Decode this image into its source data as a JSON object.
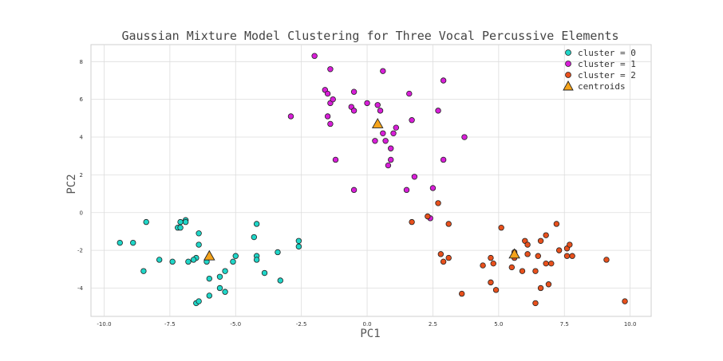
{
  "chart_data": {
    "type": "scatter",
    "title": "Gaussian Mixture Model Clustering for Three Vocal Percussive Elements",
    "xlabel": "PC1",
    "ylabel": "PC2",
    "xlim": [
      -10.5,
      10.8
    ],
    "ylim": [
      -5.5,
      8.9
    ],
    "xticks": [
      -10.0,
      -7.5,
      -5.0,
      -2.5,
      0.0,
      2.5,
      5.0,
      7.5,
      10.0
    ],
    "xtick_labels": [
      "-10.0",
      "-7.5",
      "-5.0",
      "-2.5",
      "0.0",
      "2.5",
      "5.0",
      "7.5",
      "10.0"
    ],
    "yticks": [
      -4,
      -2,
      0,
      2,
      4,
      6,
      8
    ],
    "ytick_labels": [
      "-4",
      "-2",
      "0",
      "2",
      "4",
      "6",
      "8"
    ],
    "grid": true,
    "legend_position": "top-right",
    "series": [
      {
        "name": "cluster = 0",
        "color": "#1fd6c8",
        "marker": "circle",
        "points": [
          [
            -9.4,
            -1.6
          ],
          [
            -8.9,
            -1.6
          ],
          [
            -8.4,
            -0.5
          ],
          [
            -8.5,
            -3.1
          ],
          [
            -7.9,
            -2.5
          ],
          [
            -7.4,
            -2.6
          ],
          [
            -7.2,
            -0.8
          ],
          [
            -7.1,
            -0.8
          ],
          [
            -7.1,
            -0.5
          ],
          [
            -6.9,
            -0.4
          ],
          [
            -6.9,
            -0.5
          ],
          [
            -6.8,
            -2.6
          ],
          [
            -6.5,
            -2.4
          ],
          [
            -6.6,
            -2.5
          ],
          [
            -6.4,
            -1.1
          ],
          [
            -6.4,
            -1.7
          ],
          [
            -6.5,
            -4.8
          ],
          [
            -6.4,
            -4.7
          ],
          [
            -6.1,
            -2.6
          ],
          [
            -6.0,
            -4.4
          ],
          [
            -6.0,
            -3.5
          ],
          [
            -5.6,
            -3.4
          ],
          [
            -5.6,
            -4.0
          ],
          [
            -5.4,
            -3.1
          ],
          [
            -5.4,
            -4.2
          ],
          [
            -5.1,
            -2.6
          ],
          [
            -5.0,
            -2.3
          ],
          [
            -4.3,
            -1.3
          ],
          [
            -4.2,
            -0.6
          ],
          [
            -4.2,
            -2.3
          ],
          [
            -4.2,
            -2.5
          ],
          [
            -3.9,
            -3.2
          ],
          [
            -3.4,
            -2.1
          ],
          [
            -3.3,
            -3.6
          ],
          [
            -2.6,
            -1.5
          ],
          [
            -2.6,
            -1.8
          ]
        ]
      },
      {
        "name": "cluster = 1",
        "color": "#d81ed8",
        "marker": "circle",
        "points": [
          [
            -2.0,
            8.3
          ],
          [
            -1.6,
            6.5
          ],
          [
            -1.5,
            6.3
          ],
          [
            -1.5,
            5.1
          ],
          [
            -1.4,
            7.6
          ],
          [
            -1.4,
            5.8
          ],
          [
            -1.4,
            4.7
          ],
          [
            -1.3,
            6.0
          ],
          [
            -1.2,
            2.8
          ],
          [
            -0.6,
            5.6
          ],
          [
            -0.5,
            6.4
          ],
          [
            -0.5,
            5.4
          ],
          [
            -0.5,
            1.2
          ],
          [
            0.0,
            5.8
          ],
          [
            0.3,
            3.8
          ],
          [
            0.4,
            5.7
          ],
          [
            0.5,
            5.4
          ],
          [
            0.6,
            4.2
          ],
          [
            0.6,
            7.5
          ],
          [
            0.7,
            3.8
          ],
          [
            0.8,
            2.5
          ],
          [
            0.9,
            2.8
          ],
          [
            0.9,
            3.4
          ],
          [
            1.0,
            4.2
          ],
          [
            1.1,
            4.5
          ],
          [
            1.5,
            1.2
          ],
          [
            1.6,
            6.3
          ],
          [
            1.7,
            4.9
          ],
          [
            1.8,
            1.9
          ],
          [
            2.4,
            -0.3
          ],
          [
            2.5,
            1.3
          ],
          [
            2.7,
            5.4
          ],
          [
            2.9,
            7.0
          ],
          [
            2.9,
            2.8
          ],
          [
            3.7,
            4.0
          ],
          [
            -2.9,
            5.1
          ]
        ]
      },
      {
        "name": "cluster = 2",
        "color": "#e8501c",
        "marker": "circle",
        "points": [
          [
            1.7,
            -0.5
          ],
          [
            2.3,
            -0.2
          ],
          [
            2.7,
            0.5
          ],
          [
            2.8,
            -2.2
          ],
          [
            2.9,
            -2.6
          ],
          [
            3.1,
            -2.4
          ],
          [
            3.1,
            -0.6
          ],
          [
            3.6,
            -4.3
          ],
          [
            4.4,
            -2.8
          ],
          [
            4.7,
            -2.4
          ],
          [
            4.7,
            -3.7
          ],
          [
            4.8,
            -2.7
          ],
          [
            4.9,
            -4.1
          ],
          [
            5.1,
            -0.8
          ],
          [
            5.5,
            -2.9
          ],
          [
            5.6,
            -2.1
          ],
          [
            5.6,
            -2.4
          ],
          [
            5.9,
            -3.1
          ],
          [
            6.0,
            -1.5
          ],
          [
            6.1,
            -2.2
          ],
          [
            6.1,
            -1.7
          ],
          [
            6.4,
            -3.1
          ],
          [
            6.4,
            -4.8
          ],
          [
            6.5,
            -2.3
          ],
          [
            6.6,
            -1.5
          ],
          [
            6.6,
            -4.0
          ],
          [
            6.8,
            -1.2
          ],
          [
            6.8,
            -2.7
          ],
          [
            6.9,
            -3.8
          ],
          [
            7.0,
            -2.7
          ],
          [
            7.2,
            -0.6
          ],
          [
            7.3,
            -2.0
          ],
          [
            7.6,
            -1.9
          ],
          [
            7.6,
            -2.3
          ],
          [
            7.7,
            -1.7
          ],
          [
            7.8,
            -2.3
          ],
          [
            9.1,
            -2.5
          ],
          [
            9.8,
            -4.7
          ]
        ]
      }
    ],
    "centroids": {
      "name": "centroids",
      "color": "#f5a31a",
      "marker": "triangle",
      "points": [
        [
          -6.0,
          -2.3
        ],
        [
          0.4,
          4.7
        ],
        [
          5.6,
          -2.2
        ]
      ]
    }
  }
}
